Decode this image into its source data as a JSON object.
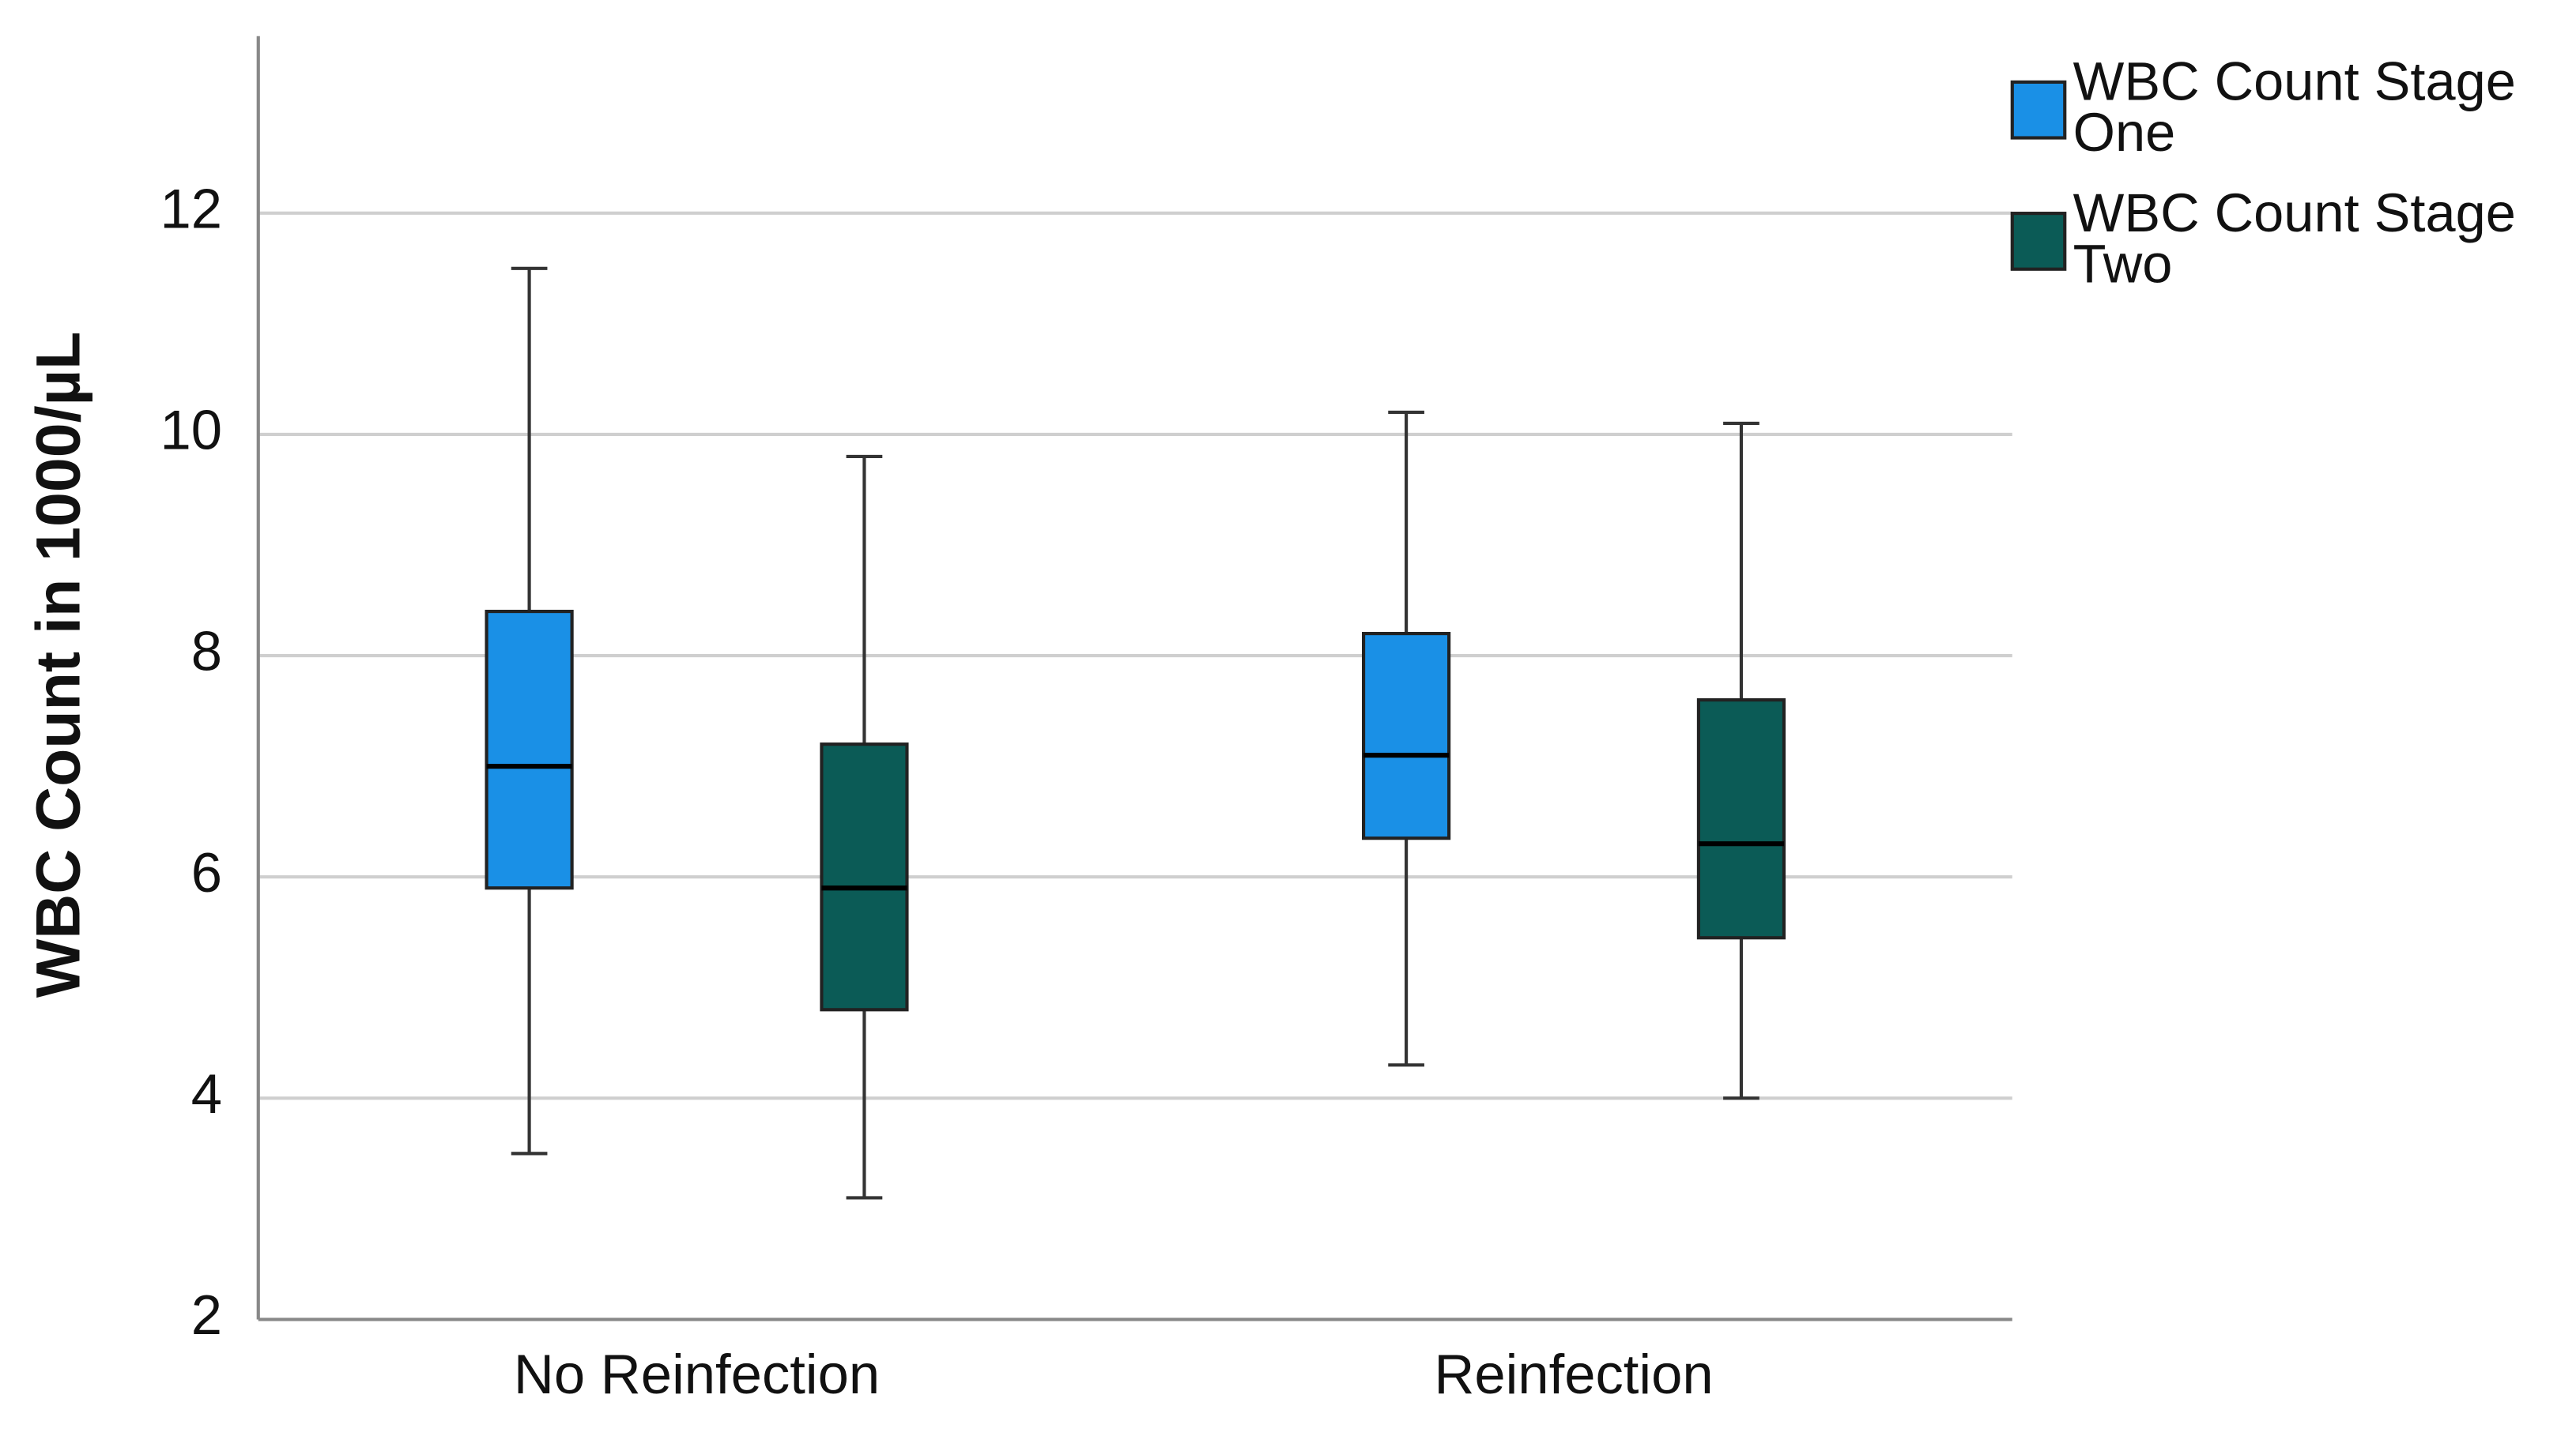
{
  "chart_data": {
    "type": "box",
    "ylabel": "WBC Count in 1000/µL",
    "categories": [
      "No Reinfection",
      "Reinfection"
    ],
    "ylim": [
      2,
      13.6
    ],
    "yticks": [
      2,
      4,
      6,
      8,
      10,
      12
    ],
    "grid": true,
    "legend": "right",
    "series": [
      {
        "name": "WBC Count Stage One",
        "color": "#1a90e6",
        "min": [
          3.5,
          4.3
        ],
        "q1": [
          5.9,
          6.35
        ],
        "median": [
          7.0,
          7.1
        ],
        "q3": [
          8.4,
          8.2
        ],
        "max": [
          11.5,
          10.2
        ]
      },
      {
        "name": "WBC Count Stage Two",
        "color": "#0b5b56",
        "min": [
          3.1,
          4.0
        ],
        "q1": [
          4.8,
          5.45
        ],
        "median": [
          5.9,
          6.3
        ],
        "q3": [
          7.2,
          7.6
        ],
        "max": [
          9.8,
          10.1
        ]
      }
    ]
  }
}
